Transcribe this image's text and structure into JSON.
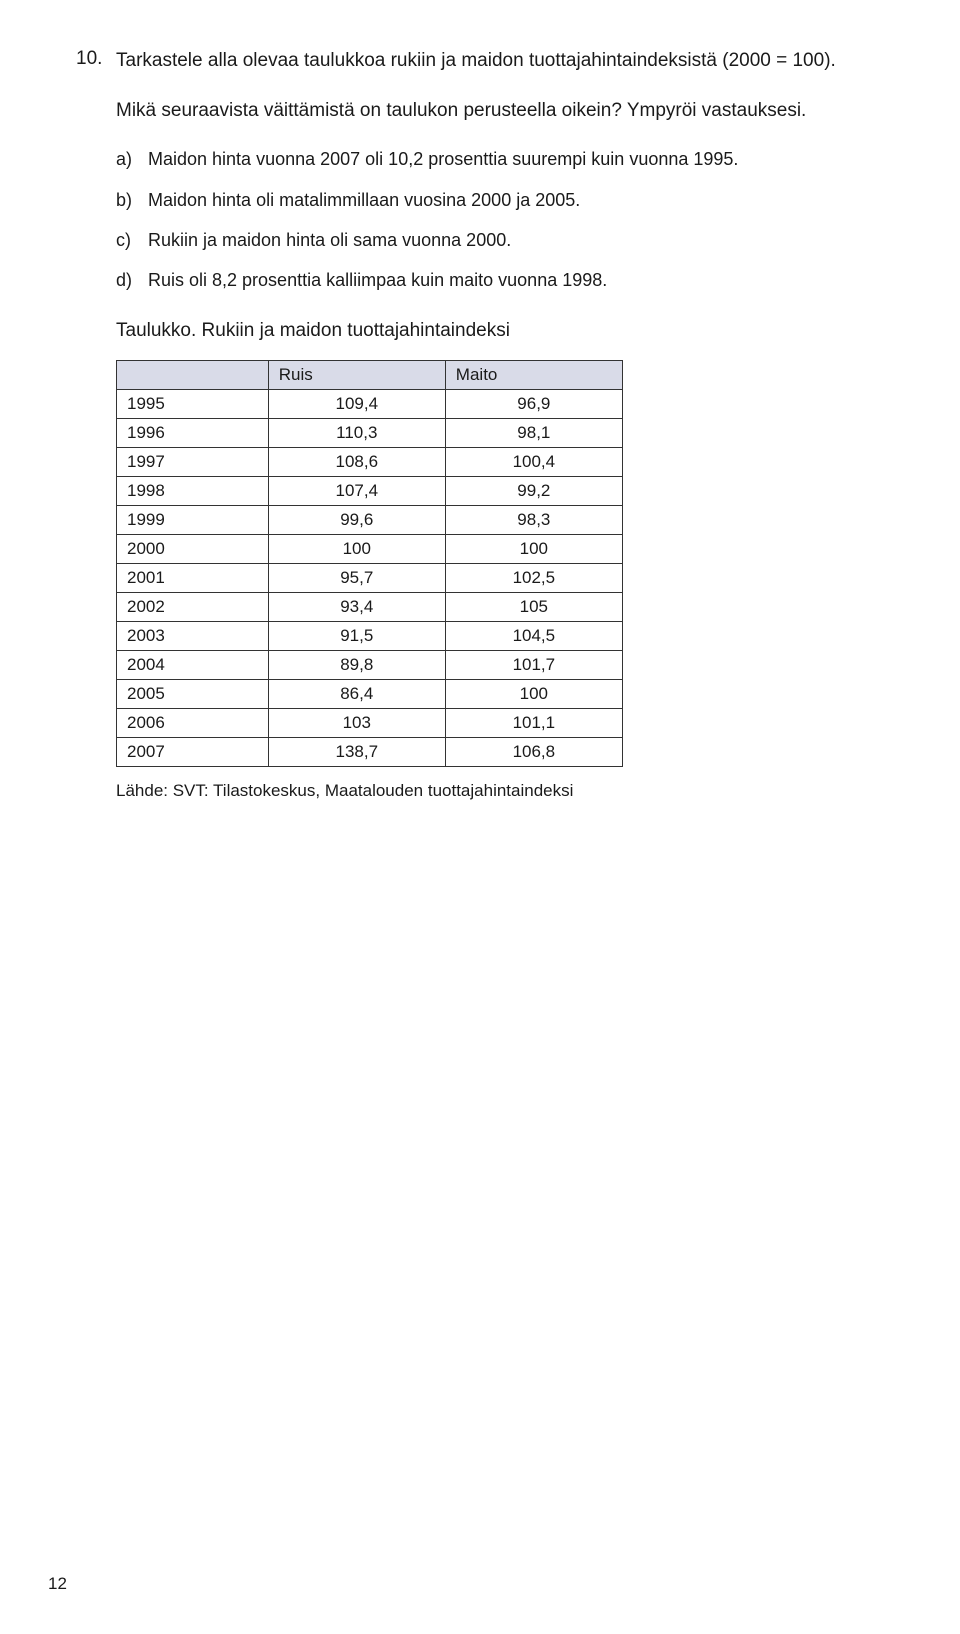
{
  "question": {
    "number": "10.",
    "title": "Tarkastele alla olevaa taulukkoa rukiin ja maidon tuottajahintaindeksistä (2000 = 100).",
    "prompt": "Mikä seuraavista väittämistä on taulukon perusteella oikein? Ympyröi vastauksesi."
  },
  "options": [
    {
      "letter": "a)",
      "text": "Maidon hinta vuonna 2007 oli 10,2 prosenttia suurempi kuin vuonna 1995."
    },
    {
      "letter": "b)",
      "text": "Maidon hinta oli matalimmillaan vuosina 2000 ja 2005."
    },
    {
      "letter": "c)",
      "text": "Rukiin ja maidon hinta oli sama vuonna 2000."
    },
    {
      "letter": "d)",
      "text": "Ruis oli 8,2 prosenttia kalliimpaa kuin maito vuonna 1998."
    }
  ],
  "table": {
    "caption": "Taulukko. Rukiin ja maidon tuottajahintaindeksi",
    "columns": [
      "",
      "Ruis",
      "Maito"
    ],
    "rows": [
      [
        "1995",
        "109,4",
        "96,9"
      ],
      [
        "1996",
        "110,3",
        "98,1"
      ],
      [
        "1997",
        "108,6",
        "100,4"
      ],
      [
        "1998",
        "107,4",
        "99,2"
      ],
      [
        "1999",
        "99,6",
        "98,3"
      ],
      [
        "2000",
        "100",
        "100"
      ],
      [
        "2001",
        "95,7",
        "102,5"
      ],
      [
        "2002",
        "93,4",
        "105"
      ],
      [
        "2003",
        "91,5",
        "104,5"
      ],
      [
        "2004",
        "89,8",
        "101,7"
      ],
      [
        "2005",
        "86,4",
        "100"
      ],
      [
        "2006",
        "103",
        "101,1"
      ],
      [
        "2007",
        "138,7",
        "106,8"
      ]
    ],
    "source": "Lähde: SVT: Tilastokeskus, Maatalouden tuottajahintaindeksi"
  },
  "page_number": "12"
}
